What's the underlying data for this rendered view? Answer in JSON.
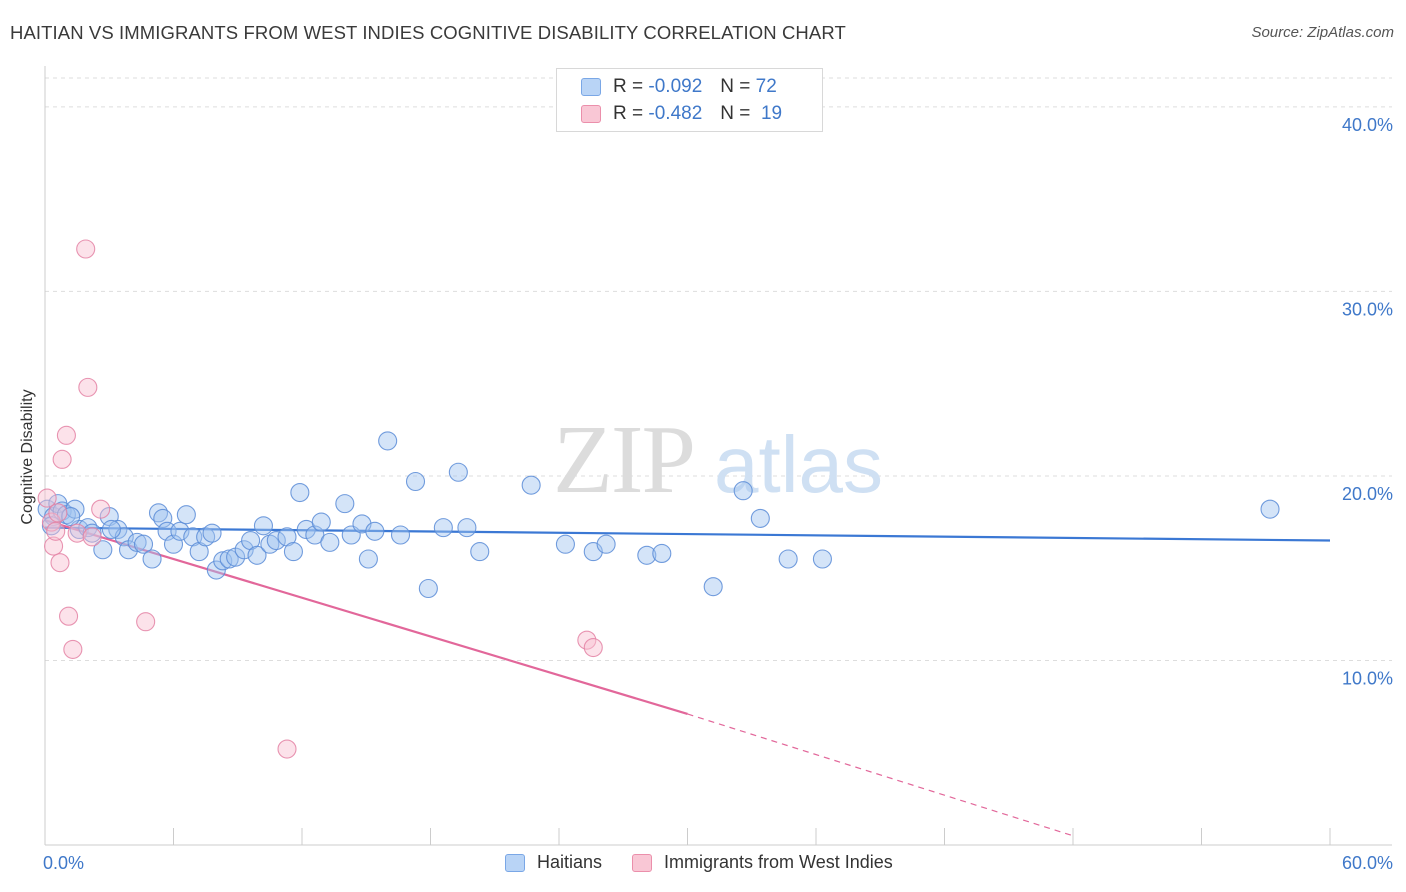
{
  "title": "HAITIAN VS IMMIGRANTS FROM WEST INDIES COGNITIVE DISABILITY CORRELATION CHART",
  "source": "Source: ZipAtlas.com",
  "legend": {
    "rows": [
      {
        "r_label": "R =",
        "r_value": "-0.092",
        "n_label": "N =",
        "n_value": "72"
      },
      {
        "r_label": "R =",
        "r_value": "-0.482",
        "n_label": "N =",
        "n_value": "19"
      }
    ]
  },
  "bottom_legend": {
    "series1": "Haitians",
    "series2": "Immigrants from West Indies"
  },
  "watermark": {
    "zip": "ZIP",
    "atlas": "atlas"
  },
  "chart_data": {
    "type": "scatter",
    "title": "HAITIAN VS IMMIGRANTS FROM WEST INDIES COGNITIVE DISABILITY CORRELATION CHART",
    "xlabel": "",
    "ylabel": "Cognitive Disability",
    "xlim": [
      0,
      60
    ],
    "ylim": [
      0,
      42
    ],
    "x_tick_labels": [
      {
        "value": 0,
        "label": "0.0%"
      },
      {
        "value": 60,
        "label": "60.0%"
      }
    ],
    "y_tick_labels": [
      {
        "value": 10,
        "label": "10.0%"
      },
      {
        "value": 20,
        "label": "20.0%"
      },
      {
        "value": 30,
        "label": "30.0%"
      },
      {
        "value": 40,
        "label": "40.0%"
      }
    ],
    "colors": {
      "series1": "#3b78d4",
      "series2": "#e2679a",
      "axis_text": "#3f78c9"
    },
    "series": [
      {
        "name": "Haitians",
        "r": -0.092,
        "n": 72,
        "trend": {
          "x0": 0,
          "y0": 17.2,
          "x1": 60,
          "y1": 16.5
        },
        "points": [
          [
            0.1,
            18.2
          ],
          [
            0.4,
            17.8
          ],
          [
            0.6,
            18.5
          ],
          [
            0.8,
            18.1
          ],
          [
            1.0,
            17.9
          ],
          [
            1.4,
            18.2
          ],
          [
            1.6,
            17.1
          ],
          [
            2.0,
            17.2
          ],
          [
            2.2,
            16.9
          ],
          [
            2.7,
            16.0
          ],
          [
            3.0,
            17.8
          ],
          [
            3.4,
            17.1
          ],
          [
            3.7,
            16.7
          ],
          [
            3.9,
            16.0
          ],
          [
            4.3,
            16.4
          ],
          [
            4.6,
            16.3
          ],
          [
            5.0,
            15.5
          ],
          [
            5.3,
            18.0
          ],
          [
            5.5,
            17.7
          ],
          [
            5.7,
            17.0
          ],
          [
            6.0,
            16.3
          ],
          [
            6.3,
            17.0
          ],
          [
            6.6,
            17.9
          ],
          [
            6.9,
            16.7
          ],
          [
            7.2,
            15.9
          ],
          [
            7.5,
            16.7
          ],
          [
            7.8,
            16.9
          ],
          [
            8.0,
            14.9
          ],
          [
            8.3,
            15.4
          ],
          [
            8.6,
            15.5
          ],
          [
            8.9,
            15.6
          ],
          [
            9.3,
            16.0
          ],
          [
            9.6,
            16.5
          ],
          [
            9.9,
            15.7
          ],
          [
            10.2,
            17.3
          ],
          [
            10.5,
            16.3
          ],
          [
            10.8,
            16.5
          ],
          [
            11.3,
            16.7
          ],
          [
            11.6,
            15.9
          ],
          [
            11.9,
            19.1
          ],
          [
            12.2,
            17.1
          ],
          [
            12.6,
            16.8
          ],
          [
            12.9,
            17.5
          ],
          [
            13.3,
            16.4
          ],
          [
            14.0,
            18.5
          ],
          [
            14.3,
            16.8
          ],
          [
            14.8,
            17.4
          ],
          [
            15.1,
            15.5
          ],
          [
            15.4,
            17.0
          ],
          [
            16.0,
            21.9
          ],
          [
            16.6,
            16.8
          ],
          [
            17.3,
            19.7
          ],
          [
            17.9,
            13.9
          ],
          [
            18.6,
            17.2
          ],
          [
            19.3,
            20.2
          ],
          [
            19.7,
            17.2
          ],
          [
            20.3,
            15.9
          ],
          [
            22.7,
            19.5
          ],
          [
            24.3,
            16.3
          ],
          [
            25.6,
            15.9
          ],
          [
            26.2,
            16.3
          ],
          [
            28.1,
            15.7
          ],
          [
            28.8,
            15.8
          ],
          [
            31.2,
            14.0
          ],
          [
            32.6,
            19.2
          ],
          [
            33.4,
            17.7
          ],
          [
            34.7,
            15.5
          ],
          [
            36.3,
            15.5
          ],
          [
            57.2,
            18.2
          ],
          [
            0.3,
            17.3
          ],
          [
            1.2,
            17.8
          ],
          [
            3.1,
            17.1
          ]
        ]
      },
      {
        "name": "Immigrants from West Indies",
        "r": -0.482,
        "n": 19,
        "trend": {
          "x0": 0,
          "y0": 17.6,
          "x1": 30,
          "y1": 7.1
        },
        "trend_dashed": {
          "x0": 30,
          "y0": 7.1,
          "x1": 48,
          "y1": 0.5
        },
        "points": [
          [
            0.1,
            18.8
          ],
          [
            0.3,
            17.5
          ],
          [
            0.4,
            16.2
          ],
          [
            0.5,
            17.0
          ],
          [
            0.6,
            18.0
          ],
          [
            0.7,
            15.3
          ],
          [
            0.8,
            20.9
          ],
          [
            1.0,
            22.2
          ],
          [
            1.1,
            12.4
          ],
          [
            1.3,
            10.6
          ],
          [
            1.5,
            16.9
          ],
          [
            1.9,
            32.3
          ],
          [
            2.0,
            24.8
          ],
          [
            2.2,
            16.7
          ],
          [
            2.6,
            18.2
          ],
          [
            4.7,
            12.1
          ],
          [
            11.3,
            5.2
          ],
          [
            25.3,
            11.1
          ],
          [
            25.6,
            10.7
          ]
        ]
      }
    ]
  }
}
